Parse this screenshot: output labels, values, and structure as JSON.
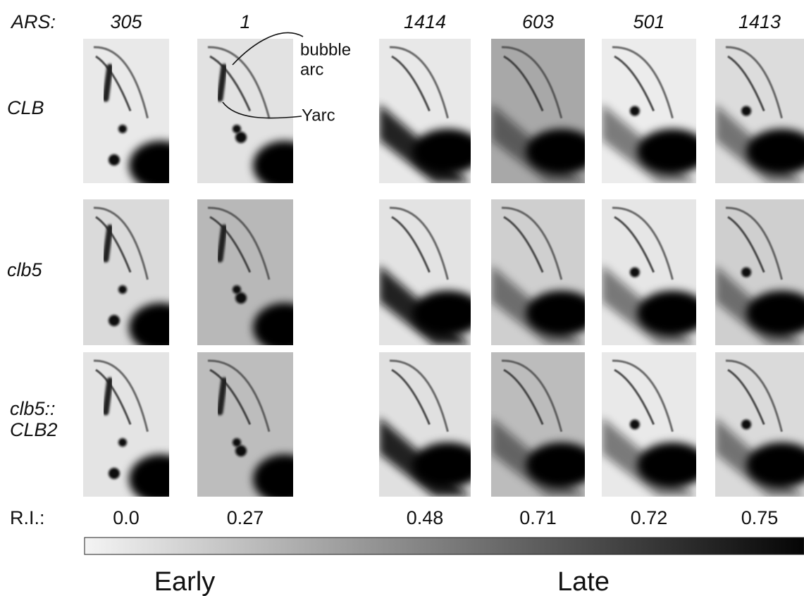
{
  "header": {
    "label": "ARS:"
  },
  "columns": [
    {
      "ars": "305",
      "ri": "0.0"
    },
    {
      "ars": "1",
      "ri": "0.27"
    },
    {
      "ars": "1414",
      "ri": "0.48"
    },
    {
      "ars": "603",
      "ri": "0.71"
    },
    {
      "ars": "501",
      "ri": "0.72"
    },
    {
      "ars": "1413",
      "ri": "0.75"
    }
  ],
  "rows": [
    {
      "lines": [
        "CLB"
      ]
    },
    {
      "lines": [
        "clb5"
      ]
    },
    {
      "lines": [
        "clb5::",
        "CLB2"
      ]
    }
  ],
  "annotations": {
    "bubble_arc": [
      "bubble",
      "arc"
    ],
    "y_arc": "Yarc"
  },
  "ri_label": "R.I.:",
  "scale": {
    "early": "Early",
    "late": "Late"
  }
}
